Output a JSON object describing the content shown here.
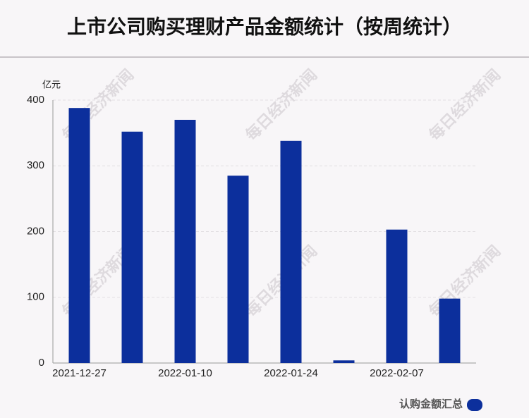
{
  "chart_data": {
    "type": "bar",
    "title": "上市公司购买理财产品金额统计（按周统计）",
    "y_unit": "亿元",
    "watermark": "每日经济新闻",
    "categories": [
      "2021-12-27",
      null,
      "2022-01-10",
      null,
      "2022-01-24",
      null,
      "2022-02-07",
      null
    ],
    "series": [
      {
        "name": "认购金额汇总",
        "color": "#0c2f9c",
        "values": [
          388,
          352,
          370,
          285,
          338,
          4,
          203,
          98
        ]
      }
    ],
    "ylim": [
      0,
      400
    ],
    "yticks": [
      0,
      100,
      200,
      300,
      400
    ],
    "grid": true,
    "legend": "bottom-right"
  }
}
